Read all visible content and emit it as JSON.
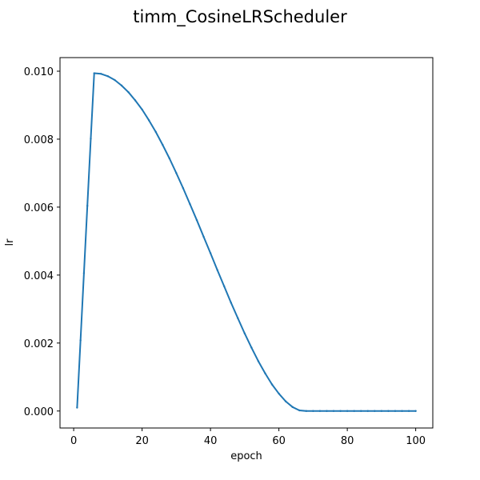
{
  "chart_data": {
    "type": "line",
    "title": "timm_CosineLRScheduler",
    "xlabel": "epoch",
    "ylabel": "lr",
    "xlim": [
      -4,
      105
    ],
    "ylim": [
      -0.0005,
      0.0104
    ],
    "x_ticks": [
      0,
      20,
      40,
      60,
      80,
      100
    ],
    "x_tick_labels": [
      "0",
      "20",
      "40",
      "60",
      "80",
      "100"
    ],
    "y_ticks": [
      0,
      0.002,
      0.004,
      0.006,
      0.008,
      0.01
    ],
    "y_tick_labels": [
      "0.000",
      "0.002",
      "0.004",
      "0.006",
      "0.008",
      "0.010"
    ],
    "grid": false,
    "legend": "none",
    "series": [
      {
        "color": "#1f77b4",
        "marker": "point",
        "x": [
          1,
          2,
          3,
          4,
          5,
          6,
          8,
          10,
          12,
          14,
          16,
          18,
          20,
          22,
          24,
          26,
          28,
          30,
          32,
          34,
          36,
          38,
          40,
          42,
          44,
          46,
          48,
          50,
          52,
          54,
          56,
          58,
          60,
          62,
          64,
          66,
          68,
          70,
          72,
          74,
          76,
          78,
          80,
          82,
          84,
          86,
          88,
          90,
          92,
          94,
          96,
          98,
          100
        ],
        "y": [
          0.0001,
          0.00208,
          0.00406,
          0.00604,
          0.00802,
          0.00994,
          0.009922,
          0.009852,
          0.00974,
          0.009579,
          0.009383,
          0.009141,
          0.008872,
          0.008556,
          0.008214,
          0.007834,
          0.007434,
          0.007002,
          0.006557,
          0.006088,
          0.005617,
          0.005127,
          0.004645,
          0.00415,
          0.00367,
          0.003188,
          0.002731,
          0.002281,
          0.001863,
          0.001464,
          0.001106,
          0.000781,
          0.000511,
          0.000283,
          0.000116,
          1.8e-05,
          0.0,
          0.0,
          0.0,
          0.0,
          0.0,
          0.0,
          0.0,
          0.0,
          0.0,
          0.0,
          0.0,
          0.0,
          0.0,
          0.0,
          0.0,
          0.0,
          0.0
        ]
      }
    ]
  }
}
